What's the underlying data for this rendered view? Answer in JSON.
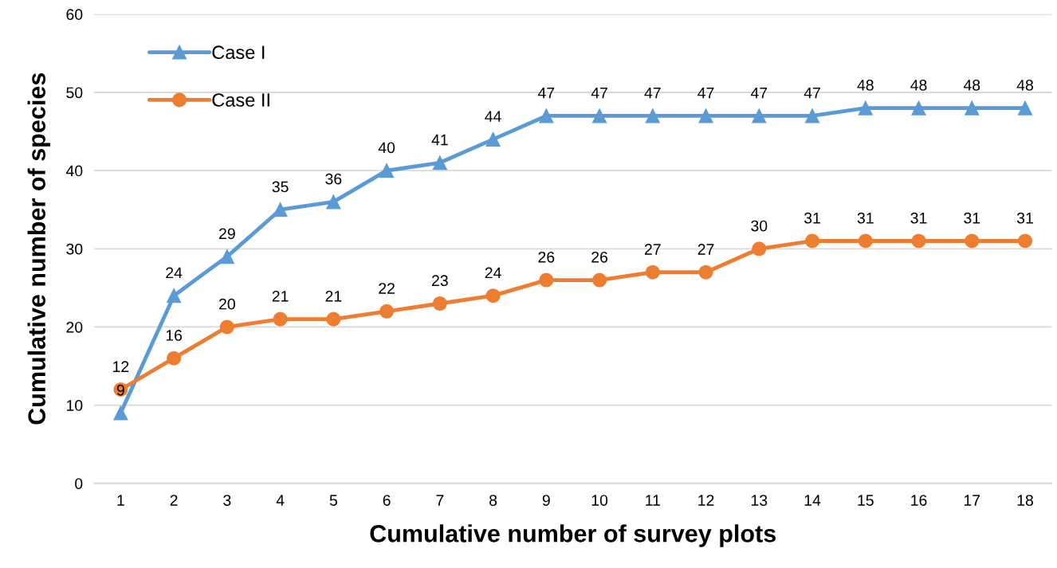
{
  "chart_data": {
    "type": "line",
    "xlabel": "Cumulative number of survey plots",
    "ylabel": "Cumulative number of species",
    "categories": [
      "1",
      "2",
      "3",
      "4",
      "5",
      "6",
      "7",
      "8",
      "9",
      "10",
      "11",
      "12",
      "13",
      "14",
      "15",
      "16",
      "17",
      "18"
    ],
    "series": [
      {
        "name": "Case I",
        "color": "#5b9bd5",
        "marker": "triangle",
        "values": [
          9,
          24,
          29,
          35,
          36,
          40,
          41,
          44,
          47,
          47,
          47,
          47,
          47,
          47,
          48,
          48,
          48,
          48
        ]
      },
      {
        "name": "Case II",
        "color": "#ed7d31",
        "marker": "circle",
        "values": [
          12,
          16,
          20,
          21,
          21,
          22,
          23,
          24,
          26,
          26,
          27,
          27,
          30,
          31,
          31,
          31,
          31,
          31
        ]
      }
    ],
    "ylim": [
      0,
      60
    ],
    "yticks": [
      0,
      10,
      20,
      30,
      40,
      50,
      60
    ],
    "grid": "y",
    "legend": "top left",
    "data_labels": true,
    "line_style": "solid"
  }
}
